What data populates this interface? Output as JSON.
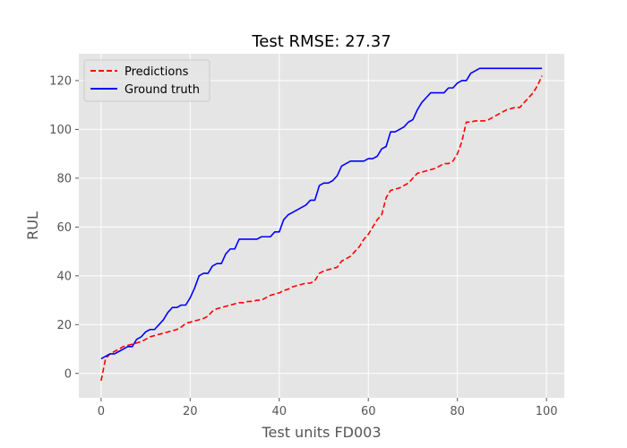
{
  "chart_data": {
    "type": "line",
    "title": "Test RMSE: 27.37",
    "xlabel": "Test units FD003",
    "ylabel": "RUL",
    "xlim": [
      -5,
      104
    ],
    "ylim": [
      -10,
      131
    ],
    "xticks": [
      0,
      20,
      40,
      60,
      80,
      100
    ],
    "yticks": [
      0,
      20,
      40,
      60,
      80,
      100,
      120
    ],
    "grid": true,
    "legend": "top-left",
    "series": [
      {
        "name": "Predictions",
        "color": "#ff0000",
        "style": "dashed",
        "x": [
          0,
          1,
          2,
          3,
          4,
          5,
          6,
          7,
          8,
          9,
          10,
          11,
          12,
          13,
          14,
          15,
          16,
          17,
          18,
          19,
          20,
          21,
          22,
          23,
          24,
          25,
          26,
          27,
          28,
          29,
          30,
          31,
          32,
          33,
          34,
          35,
          36,
          37,
          38,
          39,
          40,
          41,
          42,
          43,
          44,
          45,
          46,
          47,
          48,
          49,
          50,
          51,
          52,
          53,
          54,
          55,
          56,
          57,
          58,
          59,
          60,
          61,
          62,
          63,
          64,
          65,
          66,
          67,
          68,
          69,
          70,
          71,
          72,
          73,
          74,
          75,
          76,
          77,
          78,
          79,
          80,
          81,
          82,
          83,
          84,
          85,
          86,
          87,
          88,
          89,
          90,
          91,
          92,
          93,
          94,
          95,
          96,
          97,
          98,
          99
        ],
        "values": [
          -3,
          6,
          8,
          9,
          10,
          11,
          11.5,
          12,
          12.5,
          13,
          14,
          15,
          15.5,
          16,
          16.5,
          17,
          17.5,
          18,
          19,
          20.5,
          21,
          21.5,
          22,
          22.5,
          23.5,
          25.5,
          26.5,
          27,
          27.5,
          28,
          28.5,
          29,
          29,
          29.5,
          29.5,
          30,
          30,
          31,
          32,
          32.5,
          33,
          34,
          34.5,
          35.5,
          36,
          36.5,
          37,
          37,
          38,
          41,
          42,
          42.5,
          43,
          43.5,
          46,
          47,
          48,
          50,
          52,
          55,
          57,
          60,
          63,
          65,
          72,
          75,
          75.5,
          76,
          77,
          78,
          80,
          82,
          82.5,
          83,
          83.5,
          84,
          85,
          86,
          86,
          87,
          90,
          95,
          103,
          103,
          103.5,
          103.5,
          103.5,
          104,
          105,
          106,
          107,
          108,
          108.5,
          109,
          109,
          111,
          113,
          115,
          118,
          122
        ]
      },
      {
        "name": "Ground truth",
        "color": "#0000ff",
        "style": "solid",
        "x": [
          0,
          1,
          2,
          3,
          4,
          5,
          6,
          7,
          8,
          9,
          10,
          11,
          12,
          13,
          14,
          15,
          16,
          17,
          18,
          19,
          20,
          21,
          22,
          23,
          24,
          25,
          26,
          27,
          28,
          29,
          30,
          31,
          32,
          33,
          34,
          35,
          36,
          37,
          38,
          39,
          40,
          41,
          42,
          43,
          44,
          45,
          46,
          47,
          48,
          49,
          50,
          51,
          52,
          53,
          54,
          55,
          56,
          57,
          58,
          59,
          60,
          61,
          62,
          63,
          64,
          65,
          66,
          67,
          68,
          69,
          70,
          71,
          72,
          73,
          74,
          75,
          76,
          77,
          78,
          79,
          80,
          81,
          82,
          83,
          84,
          85,
          86,
          87,
          88,
          89,
          90,
          91,
          92,
          93,
          94,
          95,
          96,
          97,
          98,
          99
        ],
        "values": [
          6,
          7,
          8,
          8,
          9,
          10,
          11,
          11,
          14,
          15,
          17,
          18,
          18,
          20,
          22,
          25,
          27,
          27,
          28,
          28,
          31,
          35,
          40,
          41,
          41,
          44,
          45,
          45,
          49,
          51,
          51,
          55,
          55,
          55,
          55,
          55,
          56,
          56,
          56,
          58,
          58,
          63,
          65,
          66,
          67,
          68,
          69,
          71,
          71,
          77,
          78,
          78,
          79,
          81,
          85,
          86,
          87,
          87,
          87,
          87,
          88,
          88,
          89,
          92,
          93,
          99,
          99,
          100,
          101,
          103,
          104,
          108,
          111,
          113,
          115,
          115,
          115,
          115,
          117,
          117,
          119,
          120,
          120,
          123,
          124,
          125,
          125,
          125,
          125,
          125,
          125,
          125,
          125,
          125,
          125,
          125,
          125,
          125,
          125,
          125
        ]
      }
    ]
  }
}
